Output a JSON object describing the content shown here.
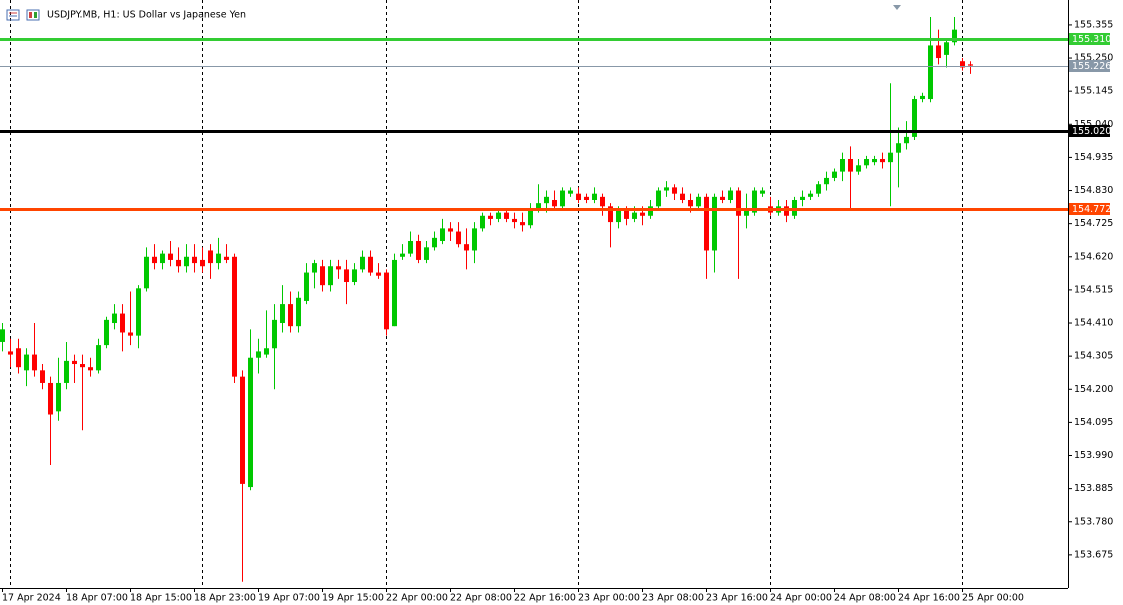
{
  "chart_data": {
    "type": "candlestick",
    "title": "USDJPY.MB, H1:  US Dollar vs Japanese Yen",
    "categories": [
      "17 Apr 2024",
      null,
      null,
      null,
      null,
      null,
      null,
      null,
      "18 Apr 07:00",
      null,
      null,
      null,
      null,
      null,
      null,
      null,
      "18 Apr 15:00",
      null,
      null,
      null,
      null,
      null,
      null,
      null,
      "18 Apr 23:00",
      null,
      null,
      null,
      null,
      null,
      null,
      null,
      "19 Apr 07:00",
      null,
      null,
      null,
      null,
      null,
      null,
      null,
      "19 Apr 15:00",
      null,
      null,
      null,
      null,
      null,
      null,
      null,
      "22 Apr 00:00",
      null,
      null,
      null,
      null,
      null,
      null,
      null,
      "22 Apr 08:00",
      null,
      null,
      null,
      null,
      null,
      null,
      null,
      "22 Apr 16:00",
      null,
      null,
      null,
      null,
      null,
      null,
      null,
      "23 Apr 00:00",
      null,
      null,
      null,
      null,
      null,
      null,
      null,
      "23 Apr 08:00",
      null,
      null,
      null,
      null,
      null,
      null,
      null,
      "23 Apr 16:00",
      null,
      null,
      null,
      null,
      null,
      null,
      null,
      "24 Apr 00:00",
      null,
      null,
      null,
      null,
      null,
      null,
      null,
      "24 Apr 08:00",
      null,
      null,
      null,
      null,
      null,
      null,
      null,
      "24 Apr 16:00",
      null,
      null,
      null,
      null,
      null,
      null,
      null,
      "25 Apr 00:00",
      null
    ],
    "open": [
      154.35,
      154.32,
      154.33,
      154.26,
      154.31,
      154.26,
      154.22,
      154.13,
      154.22,
      154.29,
      154.28,
      154.27,
      154.26,
      154.34,
      154.41,
      154.44,
      154.38,
      154.37,
      154.52,
      154.62,
      154.6,
      154.63,
      154.61,
      154.59,
      154.62,
      154.61,
      154.64,
      154.6,
      154.62,
      154.62,
      154.24,
      153.89,
      154.3,
      154.31,
      154.33,
      154.41,
      154.47,
      154.4,
      154.48,
      154.57,
      154.59,
      154.53,
      154.59,
      154.58,
      154.54,
      154.58,
      154.62,
      154.57,
      154.57,
      154.4,
      154.62,
      154.63,
      154.67,
      154.61,
      154.65,
      154.67,
      154.71,
      154.7,
      154.66,
      154.64,
      154.71,
      154.75,
      154.74,
      154.76,
      154.74,
      154.73,
      154.72,
      154.77,
      154.79,
      154.8,
      154.78,
      154.82,
      154.82,
      154.81,
      154.8,
      154.81,
      154.78,
      154.73,
      154.77,
      154.74,
      154.76,
      154.75,
      154.78,
      154.83,
      154.84,
      154.82,
      154.8,
      154.78,
      154.81,
      154.64,
      154.81,
      154.8,
      154.83,
      154.75,
      154.76,
      154.82,
      154.78,
      154.76,
      154.78,
      154.75,
      154.8,
      154.81,
      154.82,
      154.85,
      154.87,
      154.89,
      154.93,
      154.89,
      154.91,
      154.92,
      154.93,
      154.92,
      154.95,
      154.98,
      155.0,
      155.12,
      155.12,
      155.29,
      155.26,
      155.3,
      155.24,
      155.23
    ],
    "high": [
      154.41,
      154.36,
      154.36,
      154.33,
      154.41,
      154.28,
      154.24,
      154.3,
      154.35,
      154.31,
      154.31,
      154.3,
      154.36,
      154.43,
      154.47,
      154.47,
      154.51,
      154.53,
      154.65,
      154.66,
      154.64,
      154.67,
      154.65,
      154.66,
      154.66,
      154.65,
      154.66,
      154.68,
      154.66,
      154.63,
      154.26,
      154.39,
      154.36,
      154.45,
      154.47,
      154.53,
      154.51,
      154.51,
      154.6,
      154.61,
      154.61,
      154.61,
      154.61,
      154.61,
      154.6,
      154.64,
      154.64,
      154.6,
      154.58,
      154.63,
      154.66,
      154.7,
      154.69,
      154.67,
      154.7,
      154.74,
      154.73,
      154.73,
      154.71,
      154.73,
      154.76,
      154.76,
      154.77,
      154.77,
      154.76,
      154.76,
      154.79,
      154.85,
      154.83,
      154.83,
      154.84,
      154.84,
      154.84,
      154.82,
      154.84,
      154.82,
      154.79,
      154.78,
      154.78,
      154.78,
      154.78,
      154.8,
      154.84,
      154.86,
      154.85,
      154.84,
      154.82,
      154.82,
      154.82,
      154.82,
      154.83,
      154.84,
      154.84,
      154.82,
      154.84,
      154.84,
      154.81,
      154.8,
      154.8,
      154.81,
      154.83,
      154.83,
      154.86,
      154.89,
      154.9,
      154.95,
      154.97,
      154.93,
      154.94,
      154.94,
      154.95,
      155.17,
      155.03,
      155.05,
      155.13,
      155.14,
      155.38,
      155.34,
      155.31,
      155.38,
      155.25,
      155.24
    ],
    "low": [
      154.32,
      154.27,
      154.25,
      154.21,
      154.24,
      154.2,
      153.96,
      154.1,
      154.2,
      154.22,
      154.07,
      154.24,
      154.25,
      154.33,
      154.39,
      154.32,
      154.34,
      154.33,
      154.51,
      154.58,
      154.58,
      154.59,
      154.57,
      154.57,
      154.57,
      154.57,
      154.55,
      154.58,
      154.6,
      154.22,
      153.59,
      153.88,
      154.25,
      154.3,
      154.2,
      154.38,
      154.38,
      154.38,
      154.47,
      154.52,
      154.51,
      154.51,
      154.55,
      154.47,
      154.53,
      154.57,
      154.56,
      154.55,
      154.37,
      154.4,
      154.61,
      154.62,
      154.6,
      154.6,
      154.64,
      154.66,
      154.67,
      154.65,
      154.58,
      154.6,
      154.7,
      154.72,
      154.73,
      154.73,
      154.71,
      154.7,
      154.71,
      154.76,
      154.76,
      154.77,
      154.77,
      154.81,
      154.79,
      154.79,
      154.79,
      154.75,
      154.65,
      154.71,
      154.72,
      154.73,
      154.72,
      154.74,
      154.77,
      154.81,
      154.8,
      154.79,
      154.76,
      154.77,
      154.55,
      154.57,
      154.79,
      154.79,
      154.55,
      154.71,
      154.75,
      154.81,
      154.75,
      154.75,
      154.73,
      154.74,
      154.78,
      154.8,
      154.81,
      154.83,
      154.86,
      154.86,
      154.77,
      154.88,
      154.9,
      154.91,
      154.9,
      154.78,
      154.84,
      154.96,
      154.99,
      155.11,
      155.11,
      155.23,
      155.22,
      155.29,
      155.21,
      155.2
    ],
    "close": [
      154.39,
      154.31,
      154.27,
      154.31,
      154.26,
      154.22,
      154.12,
      154.22,
      154.29,
      154.28,
      154.27,
      154.26,
      154.34,
      154.42,
      154.44,
      154.38,
      154.37,
      154.52,
      154.62,
      154.6,
      154.63,
      154.61,
      154.59,
      154.62,
      154.6,
      154.59,
      154.6,
      154.63,
      154.61,
      154.24,
      153.9,
      154.3,
      154.32,
      154.33,
      154.42,
      154.47,
      154.4,
      154.49,
      154.57,
      154.6,
      154.53,
      154.59,
      154.58,
      154.54,
      154.58,
      154.62,
      154.57,
      154.56,
      154.39,
      154.61,
      154.63,
      154.67,
      154.61,
      154.65,
      154.68,
      154.71,
      154.7,
      154.66,
      154.64,
      154.71,
      154.75,
      154.74,
      154.76,
      154.74,
      154.73,
      154.72,
      154.77,
      154.79,
      154.81,
      154.78,
      154.83,
      154.83,
      154.8,
      154.8,
      154.82,
      154.78,
      154.73,
      154.77,
      154.74,
      154.76,
      154.75,
      154.78,
      154.83,
      154.84,
      154.82,
      154.8,
      154.78,
      154.81,
      154.64,
      154.81,
      154.8,
      154.83,
      154.75,
      154.77,
      154.83,
      154.83,
      154.76,
      154.78,
      154.75,
      154.8,
      154.81,
      154.82,
      154.85,
      154.87,
      154.89,
      154.93,
      154.89,
      154.91,
      154.93,
      154.93,
      154.92,
      154.95,
      154.98,
      155.0,
      155.12,
      155.13,
      155.29,
      155.25,
      155.3,
      155.34,
      155.22,
      155.226
    ],
    "up_color": "#00c800",
    "down_color": "#ff0000",
    "ylim": [
      153.57,
      155.434
    ],
    "yticks": [
      155.355,
      {
        "value": 155.25,
        "label": "155.250"
      },
      155.145,
      {
        "value": 155.04,
        "label": "155.040"
      },
      154.935,
      {
        "value": 154.83,
        "label": "154.830"
      },
      154.725,
      {
        "value": 154.62,
        "label": "154.620"
      },
      154.515,
      {
        "value": 154.41,
        "label": "154.410"
      },
      154.305,
      {
        "value": 154.2,
        "label": "154.200"
      },
      154.095,
      {
        "value": 153.99,
        "label": "153.990"
      },
      153.885,
      {
        "value": 153.78,
        "label": "153.780"
      },
      153.675
    ],
    "levels": [
      {
        "value": 155.31,
        "label": "155.310",
        "color": "#33cc33"
      },
      {
        "value": 155.02,
        "label": "155.020",
        "color": "#000000"
      },
      {
        "value": 154.772,
        "label": "154.772",
        "color": "#ff4500"
      },
      {
        "value": 155.226,
        "label": "155.226",
        "color": "#8898a8"
      }
    ]
  }
}
